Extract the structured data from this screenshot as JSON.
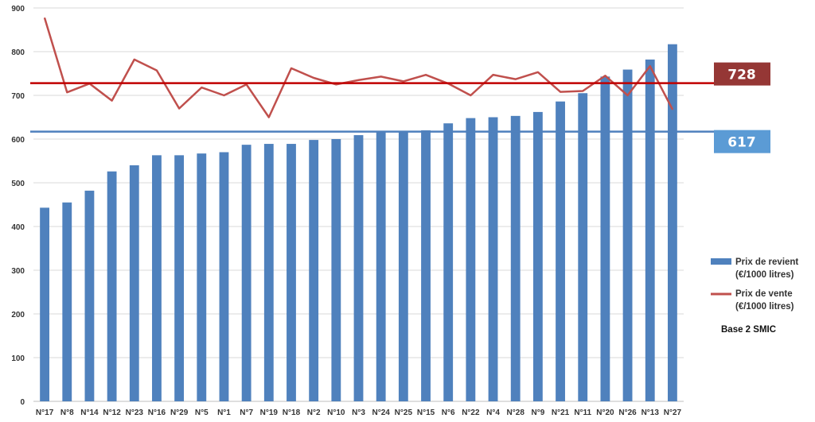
{
  "chart_data": {
    "type": "bar",
    "title": "",
    "xlabel": "",
    "ylabel": "",
    "ylim": [
      0,
      900
    ],
    "yticks": [
      0,
      100,
      200,
      300,
      400,
      500,
      600,
      700,
      800,
      900
    ],
    "grid": true,
    "legend_position": "right",
    "categories": [
      "N°17",
      "N°8",
      "N°14",
      "N°12",
      "N°23",
      "N°16",
      "N°29",
      "N°5",
      "N°1",
      "N°7",
      "N°19",
      "N°18",
      "N°2",
      "N°10",
      "N°3",
      "N°24",
      "N°25",
      "N°15",
      "N°6",
      "N°22",
      "N°4",
      "N°28",
      "N°9",
      "N°21",
      "N°11",
      "N°20",
      "N°26",
      "N°13",
      "N°27"
    ],
    "series": [
      {
        "name": "Prix de revient (€/1000 litres)",
        "type": "bar",
        "color": "#4f81bd",
        "values": [
          443,
          455,
          482,
          526,
          540,
          563,
          563,
          567,
          570,
          587,
          589,
          589,
          598,
          600,
          609,
          617,
          618,
          620,
          636,
          648,
          650,
          653,
          662,
          686,
          705,
          743,
          759,
          782,
          817
        ]
      },
      {
        "name": "Prix de vente (€/1000 litres)",
        "type": "line",
        "color": "#c0504d",
        "values": [
          877,
          707,
          727,
          688,
          782,
          757,
          670,
          718,
          700,
          725,
          650,
          762,
          740,
          725,
          735,
          743,
          732,
          747,
          727,
          700,
          747,
          737,
          753,
          708,
          710,
          745,
          700,
          767,
          668
        ]
      }
    ],
    "reference_lines": [
      {
        "value": 728,
        "label": "728",
        "color": "#c00000",
        "box_color": "#953735"
      },
      {
        "value": 617,
        "label": "617",
        "color": "#4f81bd",
        "box_color": "#5b9bd5"
      }
    ],
    "legend": [
      "Prix de revient",
      "(€/1000 litres)",
      "Prix de vente",
      "(€/1000 litres)"
    ],
    "annotation": "Base 2 SMIC"
  }
}
